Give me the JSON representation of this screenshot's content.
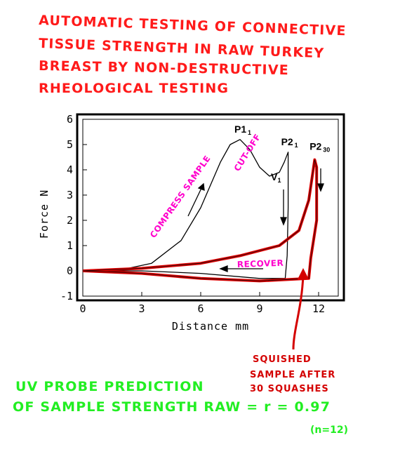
{
  "title": {
    "lines": [
      "AUTOMATIC TESTING OF CONNECTIVE",
      "TISSUE STRENGTH IN RAW TURKEY",
      "BREAST BY NON-DESTRUCTIVE",
      "RHEOLOGICAL TESTING"
    ],
    "color": "#ff1a1a"
  },
  "chart_data": {
    "type": "line",
    "xlabel": "Distance mm",
    "ylabel": "Force N",
    "xlim": [
      0,
      13
    ],
    "ylim": [
      -1,
      6
    ],
    "x_ticks": [
      0,
      3,
      6,
      9,
      12
    ],
    "y_ticks": [
      -1,
      0,
      1,
      2,
      3,
      4,
      5,
      6
    ],
    "grid": false,
    "series": [
      {
        "color": "#000000",
        "points": [
          [
            0,
            0
          ],
          [
            2,
            0.05
          ],
          [
            3.5,
            0.3
          ],
          [
            5,
            1.2
          ],
          [
            6,
            2.5
          ],
          [
            7,
            4.3
          ],
          [
            7.5,
            5.0
          ],
          [
            8,
            5.2
          ],
          [
            8.5,
            4.8
          ],
          [
            9,
            4.1
          ],
          [
            9.5,
            3.75
          ],
          [
            10,
            3.9
          ],
          [
            10.25,
            4.3
          ],
          [
            10.45,
            4.7
          ],
          [
            10.45,
            2.5
          ],
          [
            10.4,
            0.6
          ],
          [
            10.3,
            -0.3
          ],
          [
            9,
            -0.3
          ],
          [
            6,
            -0.1
          ],
          [
            3,
            0
          ],
          [
            0,
            0
          ]
        ]
      },
      {
        "color": "#dd0000",
        "points": [
          [
            0,
            0
          ],
          [
            3,
            0.1
          ],
          [
            6,
            0.3
          ],
          [
            8,
            0.6
          ],
          [
            10,
            1.0
          ],
          [
            11,
            1.6
          ],
          [
            11.5,
            2.8
          ],
          [
            11.8,
            4.4
          ],
          [
            11.9,
            4.1
          ],
          [
            11.9,
            2.0
          ],
          [
            11.6,
            0.5
          ],
          [
            11.5,
            -0.3
          ],
          [
            9,
            -0.4
          ],
          [
            6,
            -0.3
          ],
          [
            3,
            -0.1
          ],
          [
            0,
            0
          ]
        ]
      }
    ],
    "peak_labels": [
      {
        "text": "P1",
        "sub": "1",
        "x": 8,
        "y": 5.2
      },
      {
        "text": "P2",
        "sub": "1",
        "x": 10.45,
        "y": 4.7
      },
      {
        "text": "P2",
        "sub": "30",
        "x": 11.9,
        "y": 4.4
      },
      {
        "text": "V",
        "sub": "1",
        "x": 9.5,
        "y": 3.75
      }
    ],
    "annotations": [
      "COMPRESS SAMPLE",
      "CUT-OFF",
      "RECOVER"
    ]
  },
  "note": {
    "lines": [
      "SQUISHED",
      "SAMPLE AFTER",
      "30 SQUASHES"
    ]
  },
  "result": {
    "line1": "UV PROBE PREDICTION",
    "line2": "OF SAMPLE STRENGTH RAW = r = 0.97",
    "n_label": "(n=12)",
    "color": "#22ee22"
  }
}
